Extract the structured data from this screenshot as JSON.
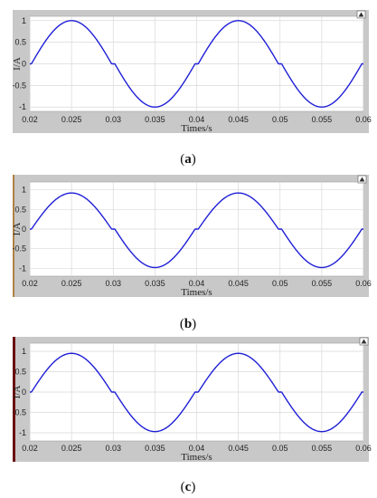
{
  "panels": [
    {
      "caption": {
        "open": "(",
        "letter": "a",
        "close": ")"
      },
      "chart_data": {
        "type": "line",
        "title": "",
        "xlabel": "Times/s",
        "ylabel": "I/A",
        "xlim": [
          0.02,
          0.06
        ],
        "ylim": [
          -1.1,
          1.1
        ],
        "xticks": [
          "0.02",
          "0.025",
          "0.03",
          "0.035",
          "0.04",
          "0.045",
          "0.05",
          "0.055",
          "0.06"
        ],
        "yticks": [
          "1",
          "0.5",
          "0",
          "-0.5",
          "-1"
        ],
        "grid": true,
        "series": [
          {
            "color": "#1f1fd6",
            "amplitude": 1.0,
            "frequency_hz": 50,
            "peaks": [
              [
                0.025,
                1
              ],
              [
                0.035,
                -1
              ],
              [
                0.045,
                1
              ],
              [
                0.055,
                -1
              ]
            ],
            "zero_crossings": [
              0.02,
              0.03,
              0.04,
              0.05,
              0.06
            ]
          }
        ]
      }
    },
    {
      "caption": {
        "open": "(",
        "letter": "b",
        "close": ")"
      },
      "chart_data": {
        "type": "line",
        "title": "",
        "xlabel": "Times/s",
        "ylabel": "I/A",
        "xlim": [
          0.02,
          0.06
        ],
        "ylim": [
          -1.2,
          1.2
        ],
        "xticks": [
          "0.02",
          "0.025",
          "0.03",
          "0.035",
          "0.04",
          "0.045",
          "0.05",
          "0.055",
          "0.06"
        ],
        "yticks": [
          "1",
          "0.5",
          "0",
          "-0.5",
          "-1"
        ],
        "grid": true,
        "series": [
          {
            "color": "#1f1fd6",
            "amplitude": 0.92,
            "frequency_hz": 50,
            "peaks": [
              [
                0.025,
                0.92
              ],
              [
                0.035,
                -0.98
              ],
              [
                0.045,
                0.92
              ],
              [
                0.055,
                -0.98
              ]
            ],
            "zero_crossings": [
              0.02,
              0.03,
              0.04,
              0.05,
              0.06
            ]
          }
        ]
      }
    },
    {
      "caption": {
        "open": "(",
        "letter": "c",
        "close": ")"
      },
      "chart_data": {
        "type": "line",
        "title": "",
        "xlabel": "Times/s",
        "ylabel": "I/A",
        "xlim": [
          0.02,
          0.06
        ],
        "ylim": [
          -1.2,
          1.2
        ],
        "xticks": [
          "0.02",
          "0.025",
          "0.03",
          "0.035",
          "0.04",
          "0.045",
          "0.05",
          "0.055",
          "0.06"
        ],
        "yticks": [
          "1",
          "0.5",
          "0",
          "-0.5",
          "-1"
        ],
        "grid": true,
        "series": [
          {
            "color": "#1f1fd6",
            "amplitude": 0.95,
            "frequency_hz": 50,
            "peaks": [
              [
                0.025,
                0.95
              ],
              [
                0.035,
                -0.97
              ],
              [
                0.045,
                0.95
              ],
              [
                0.055,
                -0.97
              ]
            ],
            "zero_crossings": [
              0.02,
              0.03,
              0.04,
              0.05,
              0.06
            ]
          }
        ]
      }
    }
  ],
  "colors": {
    "frame": "#c8c8c8",
    "plot_bg": "#ffffff",
    "grid": "#d9d9d9",
    "line": "#1f1fd6",
    "axis_text": "#222222"
  },
  "icons": {
    "dock": "dock-arrow-icon"
  }
}
